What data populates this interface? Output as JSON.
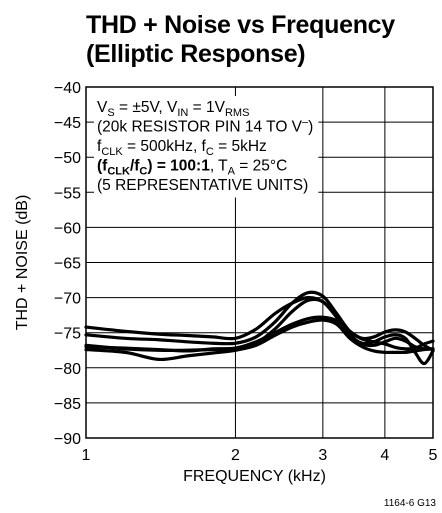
{
  "chart_data": {
    "type": "line",
    "title": "THD + Noise vs Frequency",
    "subtitle": "(Elliptic Response)",
    "xlabel": "FREQUENCY (kHz)",
    "ylabel": "THD + NOISE (dB)",
    "xscale": "log",
    "xlim": [
      1,
      5
    ],
    "ylim": [
      -90,
      -40
    ],
    "x_ticks": [
      1,
      2,
      3,
      4,
      5
    ],
    "x_tick_labels": [
      "1",
      "2",
      "3",
      "4",
      "5"
    ],
    "y_ticks": [
      -40,
      -45,
      -50,
      -55,
      -60,
      -65,
      -70,
      -75,
      -80,
      -85,
      -90
    ],
    "y_tick_labels": [
      "−40",
      "−45",
      "−50",
      "−55",
      "−60",
      "−65",
      "−70",
      "−75",
      "−80",
      "−85",
      "−90"
    ],
    "grid": true,
    "annotation_lines": [
      [
        {
          "t": "V"
        },
        {
          "t": "S",
          "sub": true
        },
        {
          "t": " = ±5V, V"
        },
        {
          "t": "IN",
          "sub": true
        },
        {
          "t": " = 1V"
        },
        {
          "t": "RMS",
          "sub": true
        }
      ],
      [
        {
          "t": "(20k RESISTOR PIN 14 TO V"
        },
        {
          "t": "–",
          "sup": true
        },
        {
          "t": ")"
        }
      ],
      [
        {
          "t": "f"
        },
        {
          "t": "CLK",
          "sub": true
        },
        {
          "t": " = 500kHz, f"
        },
        {
          "t": "C",
          "sub": true
        },
        {
          "t": " = 5kHz"
        }
      ],
      [
        {
          "t": "(f",
          "b": true
        },
        {
          "t": "CLK",
          "sub": true,
          "b": true
        },
        {
          "t": "/f",
          "b": true
        },
        {
          "t": "C",
          "sub": true,
          "b": true
        },
        {
          "t": ") = 100:1",
          "b": true
        },
        {
          "t": ", T"
        },
        {
          "t": "A",
          "sub": true
        },
        {
          "t": " = 25°C"
        }
      ],
      [
        {
          "t": "(5 REPRESENTATIVE UNITS)"
        }
      ]
    ],
    "series": [
      {
        "x": [
          1,
          1.2,
          1.4,
          1.6,
          1.8,
          2.0,
          2.2,
          2.4,
          2.6,
          2.8,
          3.0,
          3.2,
          3.4,
          3.6,
          3.8,
          4.0,
          4.2,
          4.4,
          4.6,
          4.8,
          5.0
        ],
        "values": [
          -74.2,
          -74.8,
          -75.2,
          -75.4,
          -75.6,
          -75.8,
          -74.5,
          -72.3,
          -70.8,
          -70.0,
          -70.6,
          -72.8,
          -75.3,
          -76.6,
          -76.8,
          -76.3,
          -75.8,
          -76.2,
          -77.0,
          -77.3,
          -77.3
        ]
      },
      {
        "x": [
          1,
          1.2,
          1.4,
          1.6,
          1.8,
          2.0,
          2.2,
          2.4,
          2.6,
          2.8,
          3.0,
          3.2,
          3.4,
          3.6,
          3.8,
          4.0,
          4.2,
          4.4,
          4.6,
          4.8,
          5.0
        ],
        "values": [
          -75.3,
          -75.8,
          -76.0,
          -76.3,
          -76.5,
          -76.5,
          -75.6,
          -73.5,
          -70.8,
          -69.3,
          -69.8,
          -72.3,
          -74.8,
          -75.8,
          -75.6,
          -74.9,
          -74.6,
          -74.9,
          -75.8,
          -76.8,
          -77.5
        ]
      },
      {
        "x": [
          1,
          1.2,
          1.4,
          1.6,
          1.8,
          2.0,
          2.2,
          2.4,
          2.6,
          2.8,
          3.0,
          3.2,
          3.4,
          3.6,
          3.8,
          4.0,
          4.2,
          4.4,
          4.6,
          4.8,
          5.0
        ],
        "values": [
          -76.8,
          -77.3,
          -77.5,
          -77.5,
          -77.4,
          -77.3,
          -76.5,
          -74.5,
          -72.0,
          -70.4,
          -70.6,
          -72.8,
          -75.3,
          -76.5,
          -76.3,
          -75.6,
          -75.3,
          -75.8,
          -77.8,
          -79.4,
          -77.6
        ]
      },
      {
        "x": [
          1,
          1.2,
          1.4,
          1.6,
          1.8,
          2.0,
          2.2,
          2.4,
          2.6,
          2.8,
          3.0,
          3.2,
          3.4,
          3.6,
          3.8,
          4.0,
          4.2,
          4.4,
          4.6,
          4.8,
          5.0
        ],
        "values": [
          -77.0,
          -77.2,
          -77.4,
          -77.6,
          -77.3,
          -77.2,
          -76.3,
          -75.0,
          -73.8,
          -73.0,
          -72.8,
          -73.3,
          -74.8,
          -75.9,
          -76.3,
          -76.6,
          -77.1,
          -77.3,
          -77.2,
          -76.6,
          -76.2
        ]
      },
      {
        "x": [
          1,
          1.2,
          1.4,
          1.6,
          1.8,
          2.0,
          2.2,
          2.4,
          2.6,
          2.8,
          3.0,
          3.2,
          3.4,
          3.6,
          3.8,
          4.0,
          4.2,
          4.4,
          4.6,
          4.8,
          5.0
        ],
        "values": [
          -77.4,
          -77.8,
          -78.8,
          -78.3,
          -77.9,
          -77.5,
          -76.8,
          -75.4,
          -74.2,
          -73.5,
          -73.2,
          -73.8,
          -75.8,
          -77.0,
          -77.6,
          -77.8,
          -77.8,
          -77.8,
          -77.6,
          -77.4,
          -77.3
        ]
      }
    ]
  },
  "figure_code": "1164-6 G13"
}
